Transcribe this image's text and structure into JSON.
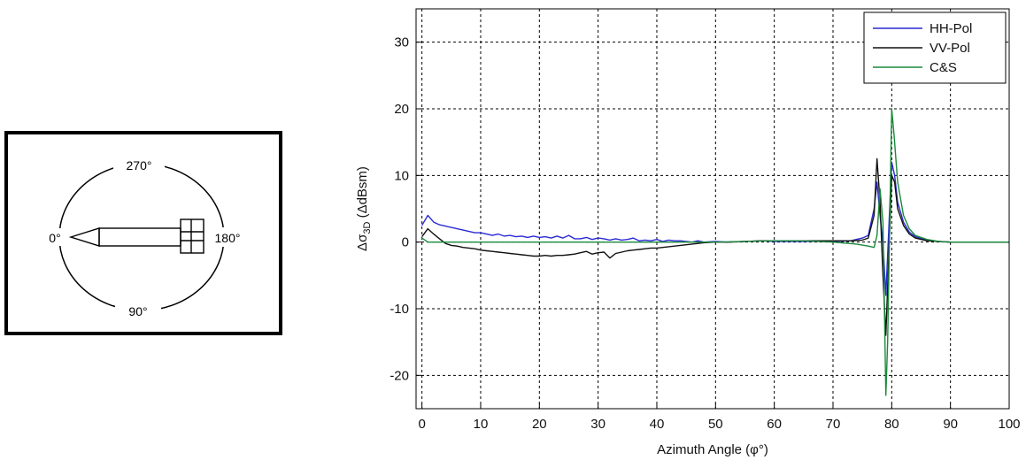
{
  "diagram": {
    "labels": {
      "top": "270°",
      "left": "0°",
      "right": "180°",
      "bottom": "90°"
    }
  },
  "chart_data": {
    "type": "line",
    "xlabel": "Azimuth Angle (φ°)",
    "ylabel_parts": {
      "delta": "Δσ",
      "subscript": "3D",
      "unit": " (ΔdBsm)"
    },
    "xlim": [
      -1,
      100
    ],
    "ylim": [
      -25,
      35
    ],
    "xticks": [
      0,
      10,
      20,
      30,
      40,
      50,
      60,
      70,
      80,
      90,
      100
    ],
    "yticks": [
      -20,
      -10,
      0,
      10,
      20,
      30
    ],
    "grid": true,
    "legend": "top-right",
    "series": [
      {
        "name": "HH-Pol",
        "color": "#2a2ad4",
        "points": [
          [
            0,
            2.5
          ],
          [
            1,
            4
          ],
          [
            2,
            3
          ],
          [
            3,
            2.6
          ],
          [
            4,
            2.4
          ],
          [
            5,
            2.2
          ],
          [
            6,
            2
          ],
          [
            7,
            1.8
          ],
          [
            8,
            1.6
          ],
          [
            9,
            1.4
          ],
          [
            10,
            1.4
          ],
          [
            11,
            1.2
          ],
          [
            12,
            1.0
          ],
          [
            13,
            1.2
          ],
          [
            14,
            0.9
          ],
          [
            15,
            1.0
          ],
          [
            16,
            0.8
          ],
          [
            17,
            0.9
          ],
          [
            18,
            0.7
          ],
          [
            19,
            0.9
          ],
          [
            20,
            0.7
          ],
          [
            21,
            0.8
          ],
          [
            22,
            0.6
          ],
          [
            23,
            0.9
          ],
          [
            24,
            0.6
          ],
          [
            25,
            1.0
          ],
          [
            26,
            0.5
          ],
          [
            27,
            0.5
          ],
          [
            28,
            0.7
          ],
          [
            29,
            0.4
          ],
          [
            30,
            0.6
          ],
          [
            31,
            0.5
          ],
          [
            32,
            0.3
          ],
          [
            33,
            0.5
          ],
          [
            34,
            0.3
          ],
          [
            35,
            0.4
          ],
          [
            36,
            0.6
          ],
          [
            37,
            0.2
          ],
          [
            38,
            0.3
          ],
          [
            39,
            0.2
          ],
          [
            40,
            0.4
          ],
          [
            41,
            0.1
          ],
          [
            42,
            0.3
          ],
          [
            43,
            0.2
          ],
          [
            44,
            0.2
          ],
          [
            45,
            0.1
          ],
          [
            46,
            0.0
          ],
          [
            47,
            0.2
          ],
          [
            48,
            0.0
          ],
          [
            50,
            0.1
          ],
          [
            52,
            0.0
          ],
          [
            55,
            0.1
          ],
          [
            58,
            0.2
          ],
          [
            60,
            0.1
          ],
          [
            63,
            0.1
          ],
          [
            66,
            0.1
          ],
          [
            70,
            0.1
          ],
          [
            73,
            0.2
          ],
          [
            75,
            0.6
          ],
          [
            76,
            1.0
          ],
          [
            77,
            5
          ],
          [
            77.5,
            9
          ],
          [
            78,
            4
          ],
          [
            78.5,
            0
          ],
          [
            79,
            -8
          ],
          [
            79.5,
            2
          ],
          [
            80,
            12
          ],
          [
            80.5,
            10
          ],
          [
            81,
            6
          ],
          [
            82,
            3
          ],
          [
            83,
            1.5
          ],
          [
            84,
            0.8
          ],
          [
            86,
            0.3
          ],
          [
            88,
            0.1
          ],
          [
            90,
            0
          ],
          [
            93,
            0
          ],
          [
            95,
            0
          ],
          [
            98,
            0
          ],
          [
            100,
            0
          ]
        ]
      },
      {
        "name": "VV-Pol",
        "color": "#111111",
        "points": [
          [
            0,
            0.8
          ],
          [
            1,
            2
          ],
          [
            2,
            1.2
          ],
          [
            3,
            0.5
          ],
          [
            4,
            -0.2
          ],
          [
            5,
            -0.5
          ],
          [
            6,
            -0.6
          ],
          [
            7,
            -0.8
          ],
          [
            8,
            -0.9
          ],
          [
            9,
            -1.0
          ],
          [
            10,
            -1.2
          ],
          [
            11,
            -1.3
          ],
          [
            12,
            -1.4
          ],
          [
            13,
            -1.5
          ],
          [
            14,
            -1.6
          ],
          [
            15,
            -1.7
          ],
          [
            16,
            -1.8
          ],
          [
            17,
            -1.9
          ],
          [
            18,
            -2.0
          ],
          [
            19,
            -2.1
          ],
          [
            20,
            -2.1
          ],
          [
            21,
            -2.0
          ],
          [
            22,
            -2.1
          ],
          [
            23,
            -2.0
          ],
          [
            24,
            -2.0
          ],
          [
            25,
            -1.9
          ],
          [
            26,
            -1.8
          ],
          [
            27,
            -1.6
          ],
          [
            28,
            -1.4
          ],
          [
            29,
            -1.8
          ],
          [
            30,
            -1.6
          ],
          [
            31,
            -1.5
          ],
          [
            32,
            -2.4
          ],
          [
            33,
            -1.7
          ],
          [
            34,
            -1.5
          ],
          [
            35,
            -1.3
          ],
          [
            36,
            -1.2
          ],
          [
            37,
            -1.1
          ],
          [
            38,
            -1.0
          ],
          [
            39,
            -0.9
          ],
          [
            40,
            -0.9
          ],
          [
            41,
            -0.8
          ],
          [
            42,
            -0.7
          ],
          [
            43,
            -0.6
          ],
          [
            44,
            -0.5
          ],
          [
            45,
            -0.4
          ],
          [
            46,
            -0.3
          ],
          [
            47,
            -0.2
          ],
          [
            48,
            -0.1
          ],
          [
            50,
            0
          ],
          [
            52,
            0.0
          ],
          [
            55,
            0.1
          ],
          [
            58,
            0.2
          ],
          [
            60,
            0.2
          ],
          [
            63,
            0.2
          ],
          [
            66,
            0.2
          ],
          [
            70,
            0.2
          ],
          [
            73,
            0.2
          ],
          [
            75,
            0.3
          ],
          [
            76,
            0.6
          ],
          [
            77,
            4
          ],
          [
            77.5,
            12.5
          ],
          [
            78,
            6
          ],
          [
            78.5,
            -5
          ],
          [
            79,
            -14
          ],
          [
            79.5,
            -2
          ],
          [
            80,
            10
          ],
          [
            80.5,
            9
          ],
          [
            81,
            5
          ],
          [
            82,
            2.5
          ],
          [
            83,
            1.2
          ],
          [
            84,
            0.6
          ],
          [
            86,
            0.2
          ],
          [
            88,
            0.1
          ],
          [
            90,
            0
          ],
          [
            93,
            0
          ],
          [
            95,
            0
          ],
          [
            98,
            0
          ],
          [
            100,
            0
          ]
        ]
      },
      {
        "name": "C&S",
        "color": "#1a8a3a",
        "points": [
          [
            0,
            0.6
          ],
          [
            1,
            0
          ],
          [
            5,
            0
          ],
          [
            10,
            0
          ],
          [
            20,
            0
          ],
          [
            30,
            0
          ],
          [
            40,
            0
          ],
          [
            50,
            0
          ],
          [
            55,
            0.1
          ],
          [
            60,
            0.2
          ],
          [
            65,
            0.2
          ],
          [
            70,
            0
          ],
          [
            74,
            -0.3
          ],
          [
            76,
            -0.6
          ],
          [
            77,
            -0.8
          ],
          [
            77.5,
            1
          ],
          [
            78,
            8
          ],
          [
            78.5,
            3
          ],
          [
            79,
            -23
          ],
          [
            79.3,
            -15
          ],
          [
            79.6,
            0
          ],
          [
            80,
            20
          ],
          [
            80.4,
            16
          ],
          [
            81,
            9
          ],
          [
            82,
            4
          ],
          [
            83,
            2
          ],
          [
            84,
            1
          ],
          [
            86,
            0.4
          ],
          [
            88,
            0.1
          ],
          [
            90,
            0
          ],
          [
            95,
            0
          ],
          [
            100,
            0
          ]
        ]
      }
    ]
  }
}
